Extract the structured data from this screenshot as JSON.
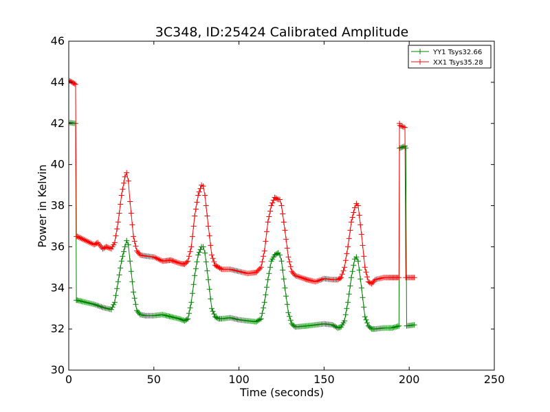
{
  "chart_data": {
    "type": "line",
    "title": "3C348, ID:25424 Calibrated Amplitude",
    "xlabel": "Time (seconds)",
    "ylabel": "Power in Kelvin",
    "xlim": [
      0,
      250
    ],
    "ylim": [
      30,
      46
    ],
    "xticks": [
      "0",
      "50",
      "100",
      "150",
      "200",
      "250"
    ],
    "yticks": [
      "30",
      "32",
      "34",
      "36",
      "38",
      "40",
      "42",
      "44",
      "46"
    ],
    "grid": false,
    "legend_position": "top-right",
    "marker": "+",
    "series": [
      {
        "name": "YY1 Tsys32.66",
        "color": "#008000",
        "x": [
          0,
          4,
          4.5,
          5,
          10,
          15,
          20,
          25,
          27,
          29,
          31,
          33,
          34,
          35,
          36,
          38,
          40,
          42,
          45,
          50,
          55,
          60,
          65,
          68,
          70,
          72,
          74,
          76,
          78,
          79,
          80,
          82,
          84,
          86,
          88,
          90,
          95,
          100,
          105,
          110,
          113,
          115,
          117,
          119,
          121,
          123,
          124,
          125,
          127,
          129,
          131,
          133,
          140,
          145,
          150,
          155,
          158,
          160,
          162,
          164,
          166,
          168,
          169,
          170,
          172,
          174,
          176,
          178,
          180,
          185,
          190,
          194,
          194.3,
          194.6,
          197.5,
          198,
          198.5,
          203
        ],
        "y": [
          42.05,
          42.0,
          33.4,
          33.4,
          33.3,
          33.2,
          33.05,
          32.95,
          33.3,
          34.3,
          35.3,
          36.0,
          36.3,
          36.1,
          35.3,
          33.8,
          32.9,
          32.7,
          32.65,
          32.65,
          32.7,
          32.6,
          32.5,
          32.4,
          32.5,
          33.3,
          34.6,
          35.6,
          36.0,
          36.0,
          35.7,
          34.4,
          33.0,
          32.6,
          32.5,
          32.5,
          32.55,
          32.45,
          32.4,
          32.35,
          32.5,
          33.3,
          34.4,
          35.3,
          35.6,
          35.7,
          35.6,
          35.3,
          34.0,
          32.8,
          32.25,
          32.1,
          32.15,
          32.2,
          32.25,
          32.2,
          32.05,
          32.1,
          32.4,
          33.3,
          34.5,
          35.4,
          35.5,
          35.3,
          34.0,
          32.6,
          32.15,
          32.0,
          32.0,
          32.05,
          32.05,
          32.15,
          40.8,
          40.8,
          40.9,
          40.8,
          32.15,
          32.2
        ]
      },
      {
        "name": "XX1 Tsys35.28",
        "color": "#ff0000",
        "x": [
          0,
          2,
          4,
          4.5,
          5,
          10,
          15,
          17,
          20,
          22,
          25,
          27,
          29,
          31,
          33,
          34,
          35,
          36,
          38,
          40,
          42,
          45,
          50,
          55,
          60,
          65,
          68,
          70,
          72,
          74,
          76,
          78,
          79,
          80,
          82,
          84,
          86,
          88,
          90,
          95,
          100,
          105,
          110,
          113,
          115,
          117,
          119,
          121,
          123,
          124,
          125,
          127,
          129,
          131,
          133,
          140,
          145,
          150,
          155,
          158,
          160,
          162,
          164,
          166,
          168,
          169,
          170,
          172,
          174,
          176,
          178,
          180,
          185,
          190,
          194,
          194.3,
          194.6,
          197.5,
          198,
          198.5,
          203
        ],
        "y": [
          44.1,
          44.0,
          43.9,
          36.5,
          36.5,
          36.3,
          36.1,
          36.2,
          35.9,
          36.0,
          35.9,
          36.2,
          37.2,
          38.5,
          39.4,
          39.6,
          39.2,
          38.2,
          36.5,
          35.8,
          35.6,
          35.55,
          35.5,
          35.3,
          35.35,
          35.2,
          35.15,
          35.3,
          36.0,
          37.5,
          38.5,
          39.0,
          38.95,
          38.5,
          37.0,
          35.6,
          35.1,
          35.0,
          34.9,
          34.9,
          34.8,
          34.7,
          34.75,
          35.0,
          35.8,
          37.2,
          38.0,
          38.4,
          38.3,
          38.3,
          38.0,
          36.8,
          35.5,
          34.8,
          34.6,
          34.4,
          34.3,
          34.45,
          34.4,
          34.4,
          34.5,
          35.0,
          36.0,
          37.2,
          37.9,
          38.1,
          38.0,
          36.6,
          35.0,
          34.3,
          34.2,
          34.4,
          34.5,
          34.5,
          34.5,
          42.0,
          41.9,
          41.8,
          34.5,
          34.5,
          34.5
        ]
      }
    ]
  }
}
